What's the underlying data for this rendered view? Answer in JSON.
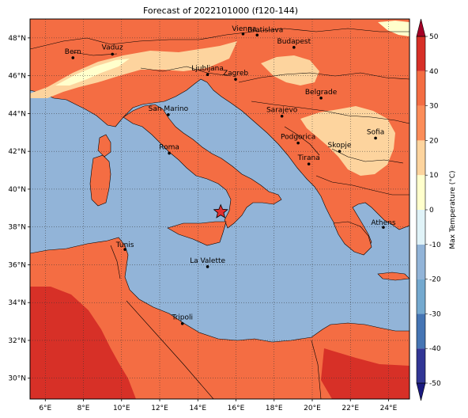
{
  "title": "Forecast of 2022101000 (f120-144)",
  "map": {
    "lon_range": [
      5.2,
      25.1
    ],
    "lat_range": [
      28.9,
      49.0
    ],
    "lon_ticks": [
      {
        "value": 6,
        "label": "6°E"
      },
      {
        "value": 8,
        "label": "8°E"
      },
      {
        "value": 10,
        "label": "10°E"
      },
      {
        "value": 12,
        "label": "12°E"
      },
      {
        "value": 14,
        "label": "14°E"
      },
      {
        "value": 16,
        "label": "16°E"
      },
      {
        "value": 18,
        "label": "18°E"
      },
      {
        "value": 20,
        "label": "20°E"
      },
      {
        "value": 22,
        "label": "22°E"
      },
      {
        "value": 24,
        "label": "24°E"
      }
    ],
    "lat_ticks": [
      {
        "value": 48,
        "label": "48°N"
      },
      {
        "value": 46,
        "label": "46°N"
      },
      {
        "value": 44,
        "label": "44°N"
      },
      {
        "value": 42,
        "label": "42°N"
      },
      {
        "value": 40,
        "label": "40°N"
      },
      {
        "value": 38,
        "label": "38°N"
      },
      {
        "value": 36,
        "label": "36°N"
      },
      {
        "value": 34,
        "label": "34°N"
      },
      {
        "value": 32,
        "label": "32°N"
      },
      {
        "value": 30,
        "label": "30°N"
      }
    ],
    "sea_color": "#92b4d8",
    "cities": [
      {
        "name": "Vienna",
        "lon": 16.37,
        "lat": 48.21
      },
      {
        "name": "Bratislava",
        "lon": 17.11,
        "lat": 48.15
      },
      {
        "name": "Budapest",
        "lon": 19.04,
        "lat": 47.5
      },
      {
        "name": "Bern",
        "lon": 7.45,
        "lat": 46.95
      },
      {
        "name": "Vaduz",
        "lon": 9.52,
        "lat": 47.14
      },
      {
        "name": "Ljubljana",
        "lon": 14.51,
        "lat": 46.06
      },
      {
        "name": "Zagreb",
        "lon": 15.98,
        "lat": 45.81
      },
      {
        "name": "Belgrade",
        "lon": 20.46,
        "lat": 44.82
      },
      {
        "name": "San Marino",
        "lon": 12.45,
        "lat": 43.94
      },
      {
        "name": "Sarajevo",
        "lon": 18.41,
        "lat": 43.86
      },
      {
        "name": "Sofia",
        "lon": 23.32,
        "lat": 42.7
      },
      {
        "name": "Podgorica",
        "lon": 19.26,
        "lat": 42.44
      },
      {
        "name": "Skopje",
        "lon": 21.43,
        "lat": 42.0
      },
      {
        "name": "Roma",
        "lon": 12.5,
        "lat": 41.9
      },
      {
        "name": "Tirana",
        "lon": 19.82,
        "lat": 41.33
      },
      {
        "name": "Athens",
        "lon": 23.73,
        "lat": 37.98
      },
      {
        "name": "Tunis",
        "lon": 10.18,
        "lat": 36.81
      },
      {
        "name": "La Valette",
        "lon": 14.51,
        "lat": 35.9
      },
      {
        "name": "Tripoli",
        "lon": 13.19,
        "lat": 32.89
      }
    ],
    "marker": {
      "lon": 15.2,
      "lat": 38.8,
      "shape": "star",
      "color": "#e03030"
    }
  },
  "colorbar": {
    "label": "Max Temperature (°C)",
    "ticks": [
      50,
      40,
      30,
      20,
      10,
      0,
      -10,
      -20,
      -30,
      -40,
      -50
    ],
    "bands": [
      {
        "from": -50,
        "to": -40,
        "color": "#313695"
      },
      {
        "from": -40,
        "to": -30,
        "color": "#4575b4"
      },
      {
        "from": -30,
        "to": -20,
        "color": "#74a9cf"
      },
      {
        "from": -20,
        "to": -10,
        "color": "#92b4d8"
      },
      {
        "from": -10,
        "to": 0,
        "color": "#e0f3f8"
      },
      {
        "from": 0,
        "to": 10,
        "color": "#ffffcc"
      },
      {
        "from": 10,
        "to": 20,
        "color": "#fdd49e"
      },
      {
        "from": 20,
        "to": 30,
        "color": "#fc8d59"
      },
      {
        "from": 30,
        "to": 40,
        "color": "#f46d43"
      },
      {
        "from": 40,
        "to": 50,
        "color": "#d73027"
      }
    ],
    "over_color": "#a50026",
    "under_color": "#1a1a80"
  }
}
